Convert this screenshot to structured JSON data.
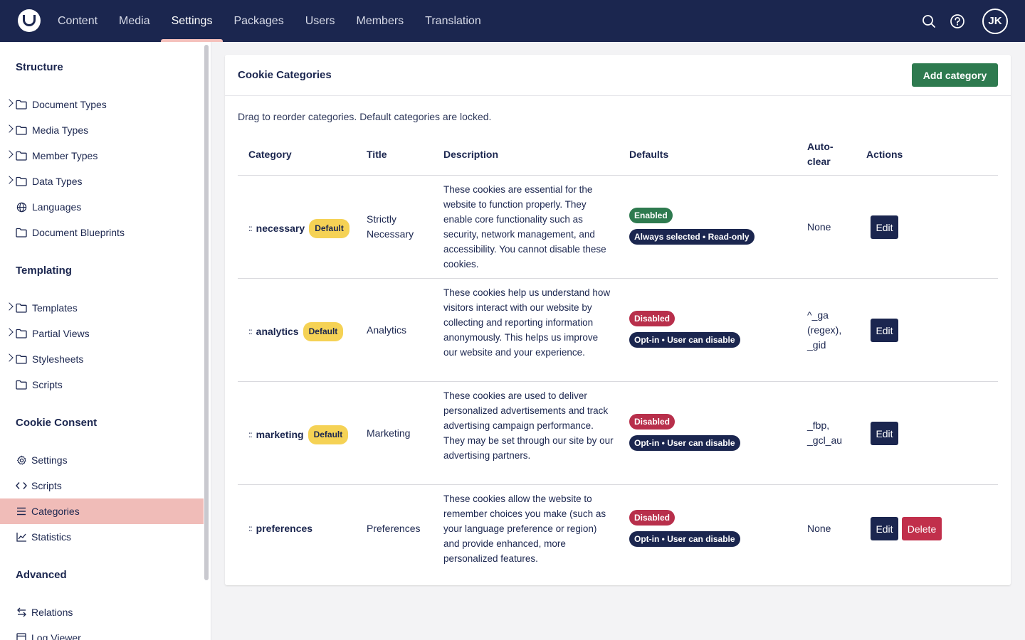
{
  "topbar": {
    "nav": [
      "Content",
      "Media",
      "Settings",
      "Packages",
      "Users",
      "Members",
      "Translation"
    ],
    "active": "Settings",
    "avatar_initials": "JK",
    "icons": [
      "search-icon",
      "help-icon"
    ]
  },
  "sidebar": {
    "sections": {
      "structure": "Structure",
      "templating": "Templating",
      "cookie_consent": "Cookie Consent",
      "advanced": "Advanced"
    },
    "structure_items": [
      "Document Types",
      "Media Types",
      "Member Types",
      "Data Types",
      "Languages",
      "Document Blueprints"
    ],
    "templating_items": [
      "Templates",
      "Partial Views",
      "Stylesheets",
      "Scripts"
    ],
    "cookie_items": [
      "Settings",
      "Scripts",
      "Categories",
      "Statistics"
    ],
    "advanced_items": [
      "Relations",
      "Log Viewer"
    ],
    "active_item": "Categories"
  },
  "panel": {
    "title": "Cookie Categories",
    "add_button": "Add category",
    "hint": "Drag to reorder categories. Default categories are locked.",
    "columns": {
      "category": "Category",
      "title": "Title",
      "description": "Description",
      "defaults": "Defaults",
      "autoclear_1": "Auto-",
      "autoclear_2": "clear",
      "actions": "Actions"
    },
    "drag_handle": "::",
    "default_badge": "Default",
    "edit_label": "Edit",
    "delete_label": "Delete",
    "rows": [
      {
        "category": "necessary",
        "title_1": "Strictly",
        "title_2": "Necessary",
        "description": "These cookies are essential for the website to function properly. They enable core functionality such as security, network management, and accessibility. You cannot disable these cookies.",
        "status": "Enabled",
        "mode": "Always selected • Read-only",
        "autoclear": [
          "None"
        ]
      },
      {
        "category": "analytics",
        "title_1": "Analytics",
        "description": "These cookies help us understand how visitors interact with our website by collecting and reporting information anonymously. This helps us improve our website and your experience.",
        "status": "Disabled",
        "mode": "Opt-in • User can disable",
        "autoclear": [
          "^_ga",
          "(regex),",
          "_gid"
        ]
      },
      {
        "category": "marketing",
        "title_1": "Marketing",
        "description": "These cookies are used to deliver personalized advertisements and track advertising campaign performance. They may be set through our site by our advertising partners.",
        "status": "Disabled",
        "mode": "Opt-in • User can disable",
        "autoclear": [
          "_fbp,",
          "_gcl_au"
        ]
      },
      {
        "category": "preferences",
        "title_1": "Preferences",
        "description": "These cookies allow the website to remember choices you make (such as your language preference or region) and provide enhanced, more personalized features.",
        "status": "Disabled",
        "mode": "Opt-in • User can disable",
        "autoclear": [
          "None"
        ]
      }
    ]
  },
  "colors": {
    "topbar": "#1b264f",
    "active_sidebar": "#f0bcb8",
    "add_button": "#2e7a4f",
    "enabled": "#2e7a4f",
    "disabled": "#b82f4b",
    "default_badge": "#f5d255",
    "delete": "#c12f4b"
  }
}
